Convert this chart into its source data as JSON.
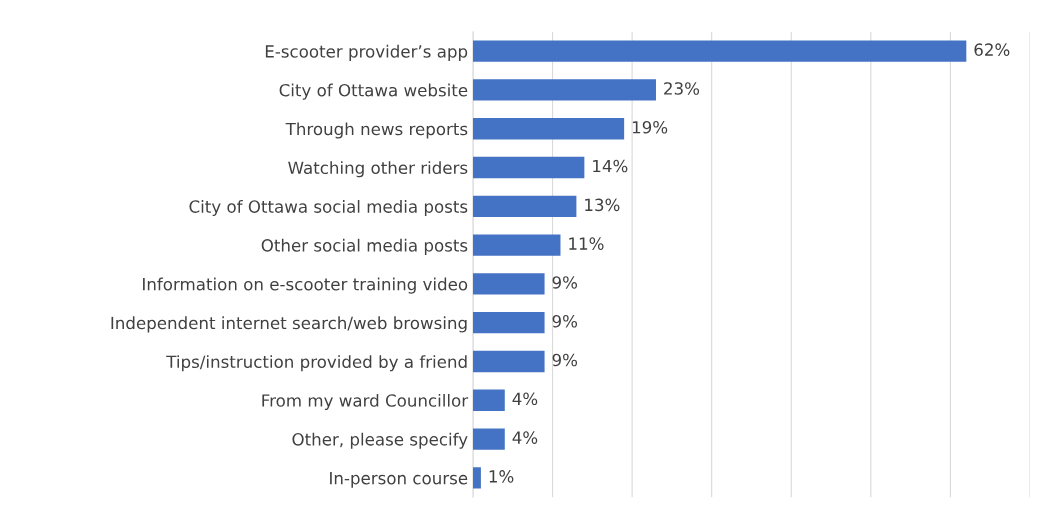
{
  "chart_data": {
    "type": "bar",
    "orientation": "horizontal",
    "categories": [
      "E-scooter provider’s app",
      "City of Ottawa website",
      "Through news reports",
      "Watching other riders",
      "City of Ottawa social media posts",
      "Other social media posts",
      "Information on e-scooter training video",
      "Independent internet search/web browsing",
      "Tips/instruction provided by a friend",
      "From my ward Councillor",
      "Other, please specify",
      "In-person course"
    ],
    "values": [
      62,
      23,
      19,
      14,
      13,
      11,
      9,
      9,
      9,
      4,
      4,
      1
    ],
    "value_labels": [
      "62%",
      "23%",
      "19%",
      "14%",
      "13%",
      "11%",
      "9%",
      "9%",
      "9%",
      "4%",
      "4%",
      "1%"
    ],
    "color": "#4472c4",
    "xlim": [
      0,
      70
    ],
    "xticks": [
      {
        "value": 0,
        "label": null
      },
      {
        "value": 10,
        "label": null
      },
      {
        "value": 20,
        "label": null
      },
      {
        "value": 30,
        "label": null
      },
      {
        "value": 40,
        "label": null
      },
      {
        "value": 50,
        "label": null
      },
      {
        "value": 60,
        "label": null
      },
      {
        "value": 70,
        "label": null
      }
    ],
    "grid": "x",
    "tick_labels": "y"
  }
}
